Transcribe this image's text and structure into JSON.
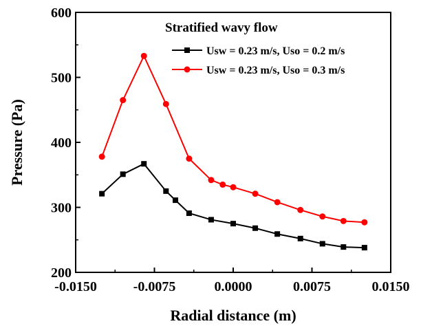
{
  "chart_data": {
    "type": "line",
    "title": "",
    "xlabel": "Radial distance (m)",
    "ylabel": "Pressure (Pa)",
    "xlim": [
      -0.015,
      0.015
    ],
    "ylim": [
      200,
      600
    ],
    "xticks": [
      -0.015,
      -0.0075,
      0.0,
      0.0075,
      0.015
    ],
    "xtick_labels": [
      "-0.0150",
      "-0.0075",
      "0.0000",
      "0.0075",
      "0.0150"
    ],
    "yticks": [
      200,
      300,
      400,
      500,
      600
    ],
    "ytick_labels": [
      "200",
      "300",
      "400",
      "500",
      "600"
    ],
    "grid": false,
    "legend": {
      "title": "Stratified wavy flow",
      "position": "top-right"
    },
    "series": [
      {
        "name": "Usw = 0.23 m/s, Uso = 0.2 m/s",
        "color": "#000000",
        "marker": "square",
        "x": [
          -0.0125,
          -0.0105,
          -0.0085,
          -0.0064,
          -0.0055,
          -0.0042,
          -0.0021,
          0.0,
          0.0021,
          0.0042,
          0.0064,
          0.0085,
          0.0105,
          0.0125
        ],
        "y": [
          321,
          351,
          367,
          325,
          311,
          291,
          281,
          275,
          268,
          259,
          252,
          244,
          239,
          238
        ]
      },
      {
        "name": "Usw = 0.23 m/s, Uso = 0.3 m/s",
        "color": "#ff0000",
        "marker": "circle",
        "x": [
          -0.0125,
          -0.0105,
          -0.0085,
          -0.0064,
          -0.0042,
          -0.0021,
          -0.001,
          0.0,
          0.0021,
          0.0042,
          0.0064,
          0.0085,
          0.0105,
          0.0125
        ],
        "y": [
          378,
          465,
          533,
          459,
          375,
          342,
          335,
          331,
          321,
          308,
          296,
          286,
          279,
          277
        ]
      }
    ]
  }
}
